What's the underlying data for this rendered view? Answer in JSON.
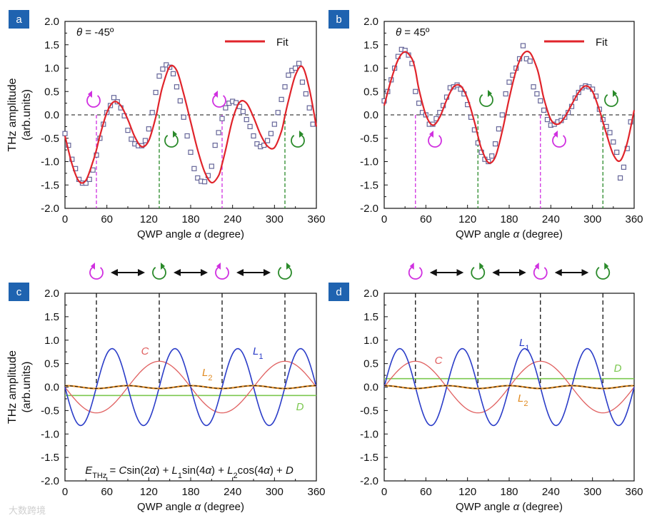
{
  "watermark": "大数跨境",
  "colors": {
    "fit": "#e0242b",
    "C": "#e06060",
    "L1": "#2a3cc8",
    "L2": "#e08a20",
    "D": "#7cc850",
    "magenta": "#d030e0",
    "green": "#2a8a2a",
    "label_bg": "#1f63b0",
    "marker": "#8a8ab0"
  },
  "shared": {
    "xlabel_parts": [
      "QWP angle ",
      "α",
      " (degree)"
    ],
    "ylabel_lines": [
      "THz amplitude",
      "(arb.units)"
    ],
    "x_ticks": [
      "0",
      "60",
      "120",
      "180",
      "240",
      "300",
      "360"
    ],
    "y_ticks": [
      "2.0",
      "1.5",
      "1.0",
      "0.5",
      "0.0",
      "-0.5",
      "-1.0",
      "-1.5",
      "-2.0"
    ]
  },
  "panel_a": {
    "label": "a",
    "theta": "θ = -45º",
    "legend": "Fit"
  },
  "panel_b": {
    "label": "b",
    "theta": "θ = 45º",
    "legend": "Fit"
  },
  "panel_c": {
    "label": "c",
    "labels": {
      "C": "C",
      "L1": "L",
      "L1_sub": "1",
      "L2": "L",
      "L2_sub": "2",
      "D": "D"
    },
    "equation": [
      "E",
      "THz",
      " = ",
      "C",
      "sin(2",
      "α",
      ") + ",
      "L",
      "1",
      "sin(4",
      "α",
      ") + ",
      "L",
      "2",
      "cos(4",
      "α",
      ") + ",
      "D"
    ]
  },
  "panel_d": {
    "label": "d",
    "labels": {
      "C": "C",
      "L1": "L",
      "L1_sub": "1",
      "L2": "L",
      "L2_sub": "2",
      "D": "D"
    }
  },
  "chart_data": [
    {
      "type": "scatter",
      "panel": "a",
      "title": "θ = -45º",
      "xlabel": "QWP angle α (degree)",
      "ylabel": "THz amplitude (arb.units)",
      "xlim": [
        0,
        360
      ],
      "ylim": [
        -2.0,
        2.0
      ],
      "series": [
        {
          "name": "data",
          "marker": "square",
          "x": [
            0,
            5,
            10,
            15,
            20,
            25,
            30,
            35,
            40,
            45,
            50,
            55,
            60,
            65,
            70,
            75,
            80,
            85,
            90,
            95,
            100,
            105,
            110,
            115,
            120,
            125,
            130,
            135,
            140,
            145,
            150,
            155,
            160,
            165,
            170,
            175,
            180,
            185,
            190,
            195,
            200,
            205,
            210,
            215,
            220,
            225,
            230,
            235,
            240,
            245,
            250,
            255,
            260,
            265,
            270,
            275,
            280,
            285,
            290,
            295,
            300,
            305,
            310,
            315,
            320,
            325,
            330,
            335,
            340,
            345,
            350,
            355
          ],
          "y": [
            -0.4,
            -0.65,
            -0.95,
            -1.15,
            -1.38,
            -1.46,
            -1.46,
            -1.38,
            -1.18,
            -0.86,
            -0.5,
            -0.2,
            0.05,
            0.2,
            0.37,
            0.28,
            0.15,
            -0.02,
            -0.33,
            -0.52,
            -0.62,
            -0.66,
            -0.66,
            -0.55,
            -0.3,
            0.05,
            0.48,
            0.83,
            0.98,
            1.07,
            1.02,
            0.88,
            0.6,
            0.3,
            -0.05,
            -0.45,
            -0.8,
            -1.15,
            -1.35,
            -1.42,
            -1.43,
            -1.3,
            -1.1,
            -0.65,
            -0.38,
            -0.08,
            0.15,
            0.25,
            0.29,
            0.26,
            0.18,
            0.07,
            -0.1,
            -0.25,
            -0.45,
            -0.62,
            -0.68,
            -0.65,
            -0.55,
            -0.4,
            -0.2,
            0.05,
            0.33,
            0.6,
            0.85,
            0.95,
            1.0,
            1.1,
            0.7,
            0.45,
            0.15,
            -0.2
          ]
        },
        {
          "name": "Fit",
          "line": true,
          "x": [
            0,
            10,
            20,
            30,
            40,
            45,
            50,
            60,
            70,
            80,
            90,
            100,
            110,
            120,
            130,
            135,
            140,
            150,
            160,
            170,
            180,
            190,
            200,
            210,
            220,
            225,
            230,
            240,
            250,
            260,
            270,
            280,
            290,
            300,
            310,
            315,
            320,
            330,
            340,
            350,
            360
          ],
          "y": [
            -0.45,
            -1.05,
            -1.42,
            -1.4,
            -1.0,
            -0.75,
            -0.45,
            0.05,
            0.28,
            0.2,
            -0.1,
            -0.47,
            -0.68,
            -0.55,
            -0.05,
            0.3,
            0.62,
            1.03,
            0.95,
            0.45,
            -0.15,
            -0.75,
            -1.22,
            -1.45,
            -1.3,
            -1.05,
            -0.75,
            -0.1,
            0.27,
            0.25,
            -0.05,
            -0.42,
            -0.67,
            -0.7,
            -0.35,
            -0.02,
            0.3,
            0.85,
            1.03,
            0.55,
            -0.25
          ]
        }
      ],
      "legend": [
        "Fit"
      ],
      "vlines": [
        {
          "x": 45,
          "color": "magenta"
        },
        {
          "x": 135,
          "color": "green"
        },
        {
          "x": 225,
          "color": "magenta"
        },
        {
          "x": 315,
          "color": "green"
        }
      ]
    },
    {
      "type": "scatter",
      "panel": "b",
      "title": "θ = 45º",
      "xlabel": "QWP angle α (degree)",
      "ylabel": "THz amplitude (arb.units)",
      "xlim": [
        0,
        360
      ],
      "ylim": [
        -2.0,
        2.0
      ],
      "series": [
        {
          "name": "data",
          "marker": "square",
          "x": [
            0,
            5,
            10,
            15,
            20,
            25,
            30,
            35,
            40,
            45,
            50,
            55,
            60,
            65,
            70,
            75,
            80,
            85,
            90,
            95,
            100,
            105,
            110,
            115,
            120,
            125,
            130,
            135,
            140,
            145,
            150,
            155,
            160,
            165,
            170,
            175,
            180,
            185,
            190,
            195,
            200,
            205,
            210,
            215,
            220,
            225,
            230,
            235,
            240,
            245,
            250,
            255,
            260,
            265,
            270,
            275,
            280,
            285,
            290,
            295,
            300,
            305,
            310,
            315,
            320,
            325,
            330,
            335,
            340,
            345,
            350,
            355
          ],
          "y": [
            0.3,
            0.5,
            0.75,
            1.0,
            1.25,
            1.4,
            1.38,
            1.28,
            1.1,
            0.5,
            0.25,
            0.05,
            0.0,
            -0.2,
            -0.2,
            -0.08,
            0.05,
            0.2,
            0.38,
            0.58,
            0.6,
            0.64,
            0.55,
            0.45,
            0.22,
            -0.05,
            -0.32,
            -0.6,
            -0.8,
            -0.95,
            -1.0,
            -0.88,
            -0.62,
            -0.3,
            0.0,
            0.45,
            0.7,
            0.85,
            1.0,
            1.2,
            1.48,
            1.2,
            1.15,
            0.6,
            0.45,
            0.3,
            0.1,
            -0.1,
            -0.22,
            -0.2,
            -0.15,
            -0.12,
            -0.05,
            0.05,
            0.18,
            0.36,
            0.48,
            0.58,
            0.62,
            0.6,
            0.55,
            0.4,
            0.12,
            -0.1,
            -0.25,
            -0.38,
            -0.58,
            -0.8,
            -1.35,
            -1.12,
            -0.72,
            -0.15
          ]
        },
        {
          "name": "Fit",
          "line": true,
          "x": [
            0,
            10,
            20,
            30,
            40,
            45,
            50,
            60,
            70,
            80,
            90,
            100,
            110,
            120,
            130,
            135,
            140,
            150,
            160,
            170,
            180,
            190,
            200,
            210,
            220,
            225,
            230,
            240,
            250,
            260,
            270,
            280,
            290,
            300,
            310,
            315,
            320,
            330,
            340,
            350,
            360
          ],
          "y": [
            0.2,
            0.75,
            1.18,
            1.35,
            1.2,
            0.95,
            0.55,
            0.0,
            -0.22,
            -0.05,
            0.32,
            0.6,
            0.62,
            0.35,
            -0.15,
            -0.45,
            -0.72,
            -1.02,
            -0.9,
            -0.35,
            0.35,
            0.95,
            1.3,
            1.33,
            1.0,
            0.7,
            0.35,
            -0.1,
            -0.2,
            -0.05,
            0.22,
            0.48,
            0.62,
            0.5,
            0.1,
            -0.15,
            -0.4,
            -0.85,
            -0.98,
            -0.6,
            0.1
          ]
        }
      ],
      "legend": [
        "Fit"
      ],
      "vlines": [
        {
          "x": 45,
          "color": "magenta"
        },
        {
          "x": 135,
          "color": "green"
        },
        {
          "x": 225,
          "color": "magenta"
        },
        {
          "x": 315,
          "color": "green"
        }
      ]
    },
    {
      "type": "line",
      "panel": "c",
      "xlabel": "QWP angle α (degree)",
      "ylabel": "THz amplitude (arb.units)",
      "xlim": [
        0,
        360
      ],
      "ylim": [
        -2.0,
        2.0
      ],
      "equation": "E_THz = C sin(2α) + L1 sin(4α) + L2 cos(4α) + D",
      "series": [
        {
          "name": "C",
          "function": "C*sin(2α)",
          "amplitude": -0.55
        },
        {
          "name": "L1",
          "function": "L1*sin(4α)",
          "amplitude": -0.82
        },
        {
          "name": "L2",
          "function": "L2*cos(4α)",
          "amplitude": 0.03
        },
        {
          "name": "D",
          "function": "constant",
          "amplitude": -0.18
        }
      ],
      "vlines": [
        45,
        135,
        225,
        315
      ],
      "polarization_sequence": [
        "left-circular",
        "right-circular",
        "left-circular",
        "right-circular"
      ]
    },
    {
      "type": "line",
      "panel": "d",
      "xlabel": "QWP angle α (degree)",
      "ylabel": "",
      "xlim": [
        0,
        360
      ],
      "ylim": [
        -2.0,
        2.0
      ],
      "series": [
        {
          "name": "C",
          "function": "C*sin(2α)",
          "amplitude": 0.55
        },
        {
          "name": "L1",
          "function": "L1*sin(4α)",
          "amplitude": 0.82
        },
        {
          "name": "L2",
          "function": "L2*cos(4α)",
          "amplitude": 0.03
        },
        {
          "name": "D",
          "function": "constant",
          "amplitude": 0.18
        }
      ],
      "vlines": [
        45,
        135,
        225,
        315
      ],
      "polarization_sequence": [
        "left-circular",
        "right-circular",
        "left-circular",
        "right-circular"
      ]
    }
  ]
}
